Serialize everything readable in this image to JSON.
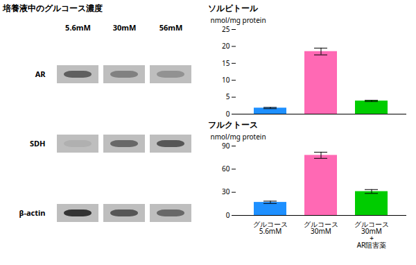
{
  "chart_data": [
    {
      "type": "heatmap",
      "title": "培養液中のグルコース濃度",
      "categories": [
        "5.6mM",
        "30mM",
        "56mM"
      ],
      "series": [
        {
          "name": "AR",
          "values": [
            0.55,
            0.35,
            0.25
          ]
        },
        {
          "name": "SDH",
          "values": [
            0.08,
            0.5,
            0.6
          ]
        },
        {
          "name": "β-actin",
          "values": [
            0.8,
            0.6,
            0.5
          ]
        }
      ]
    },
    {
      "type": "bar",
      "title": "ソルビトール",
      "ylabel": "nmol/mg protein",
      "categories": [
        null,
        null,
        null
      ],
      "values": [
        1.8,
        18.5,
        3.9
      ],
      "errors": [
        0.2,
        1.0,
        0.2
      ],
      "colors": [
        "#1E90FF",
        "#FF69B4",
        "#00CC00"
      ],
      "ylim": [
        0,
        25
      ],
      "yticks": [
        0,
        5,
        10,
        15,
        20,
        25
      ],
      "tick_labels": "y"
    },
    {
      "type": "bar",
      "title": "フルクトース",
      "ylabel": "nmol/mg protein",
      "categories": [
        "グルコース\n5.6mM",
        "グルコース\n30mM",
        "グルコース\n30mM\n+\nAR阻害薬"
      ],
      "values": [
        17.0,
        78.0,
        31.0
      ],
      "errors": [
        1.5,
        4.0,
        2.5
      ],
      "colors": [
        "#1E90FF",
        "#FF69B4",
        "#00CC00"
      ],
      "ylim": [
        0,
        90
      ],
      "yticks": [
        0,
        30,
        60,
        90
      ]
    }
  ]
}
